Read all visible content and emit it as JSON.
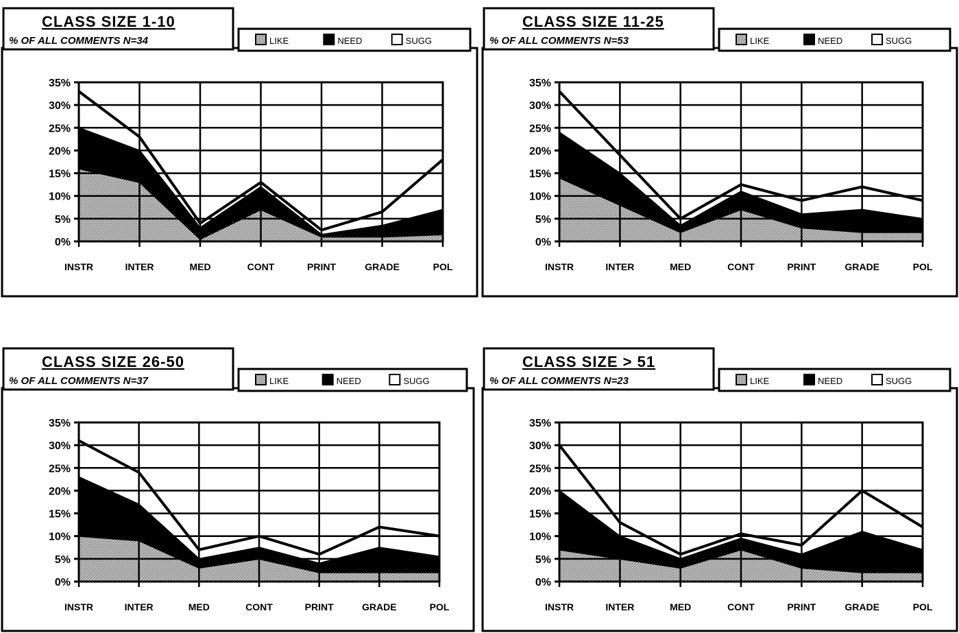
{
  "colors": {
    "like": "#b3b3b3",
    "need": "#000000",
    "sugg": "#ffffff",
    "frame": "#000000",
    "background": "#ffffff"
  },
  "chart_data": [
    {
      "type": "area",
      "title": "CLASS SIZE  1-10",
      "subtitle": "% OF ALL COMMENTS  N=34",
      "categories": [
        "INSTR",
        "INTER",
        "MED",
        "CONT",
        "PRINT",
        "GRADE",
        "POL"
      ],
      "y_ticks": [
        "35%",
        "30%",
        "25%",
        "20%",
        "15%",
        "10%",
        "5%",
        "0%"
      ],
      "ylim": [
        0,
        35
      ],
      "stacked": true,
      "grid": true,
      "legend_position": "top-right",
      "series": [
        {
          "name": "LIKE",
          "values": [
            16,
            13,
            0.5,
            7,
            1,
            1,
            1.5
          ]
        },
        {
          "name": "NEED",
          "values": [
            9,
            7,
            2.5,
            5,
            0.5,
            2.5,
            5.5
          ]
        },
        {
          "name": "SUGG",
          "values": [
            8,
            3,
            1,
            1,
            1,
            3,
            11
          ]
        }
      ]
    },
    {
      "type": "area",
      "title": "CLASS SIZE  11-25",
      "subtitle": "% OF ALL COMMENTS  N=53",
      "categories": [
        "INSTR",
        "INTER",
        "MED",
        "CONT",
        "PRINT",
        "GRADE",
        "POL"
      ],
      "y_ticks": [
        "35%",
        "30%",
        "25%",
        "20%",
        "15%",
        "10%",
        "5%",
        "0%"
      ],
      "ylim": [
        0,
        35
      ],
      "stacked": true,
      "grid": true,
      "legend_position": "top-right",
      "series": [
        {
          "name": "LIKE",
          "values": [
            14,
            8,
            2,
            7,
            3,
            2,
            2
          ]
        },
        {
          "name": "NEED",
          "values": [
            10,
            7,
            1.5,
            4,
            3,
            5,
            3
          ]
        },
        {
          "name": "SUGG",
          "values": [
            9,
            4,
            1.5,
            1.5,
            3,
            5,
            4
          ]
        }
      ]
    },
    {
      "type": "area",
      "title": "CLASS SIZE  26-50",
      "subtitle": "% OF ALL COMMENTS  N=37",
      "categories": [
        "INSTR",
        "INTER",
        "MED",
        "CONT",
        "PRINT",
        "GRADE",
        "POL"
      ],
      "y_ticks": [
        "35%",
        "30%",
        "25%",
        "20%",
        "15%",
        "10%",
        "5%",
        "0%"
      ],
      "ylim": [
        0,
        35
      ],
      "stacked": true,
      "grid": true,
      "legend_position": "top-right",
      "series": [
        {
          "name": "LIKE",
          "values": [
            10,
            9,
            3,
            5,
            2,
            2,
            2
          ]
        },
        {
          "name": "NEED",
          "values": [
            13,
            8,
            2,
            2.5,
            2,
            5.5,
            3.5
          ]
        },
        {
          "name": "SUGG",
          "values": [
            8,
            7,
            2,
            2.5,
            2,
            4.5,
            4.5
          ]
        }
      ]
    },
    {
      "type": "area",
      "title": "CLASS SIZE  > 51",
      "subtitle": "% OF ALL COMMENTS  N=23",
      "categories": [
        "INSTR",
        "INTER",
        "MED",
        "CONT",
        "PRINT",
        "GRADE",
        "POL"
      ],
      "y_ticks": [
        "35%",
        "30%",
        "25%",
        "20%",
        "15%",
        "10%",
        "5%",
        "0%"
      ],
      "ylim": [
        0,
        35
      ],
      "stacked": true,
      "grid": true,
      "legend_position": "top-right",
      "series": [
        {
          "name": "LIKE",
          "values": [
            7,
            5,
            3,
            7,
            3,
            2,
            2
          ]
        },
        {
          "name": "NEED",
          "values": [
            13,
            5,
            2,
            2.5,
            3,
            9,
            5
          ]
        },
        {
          "name": "SUGG",
          "values": [
            10,
            3,
            1,
            1,
            2,
            9,
            5
          ]
        }
      ]
    }
  ]
}
